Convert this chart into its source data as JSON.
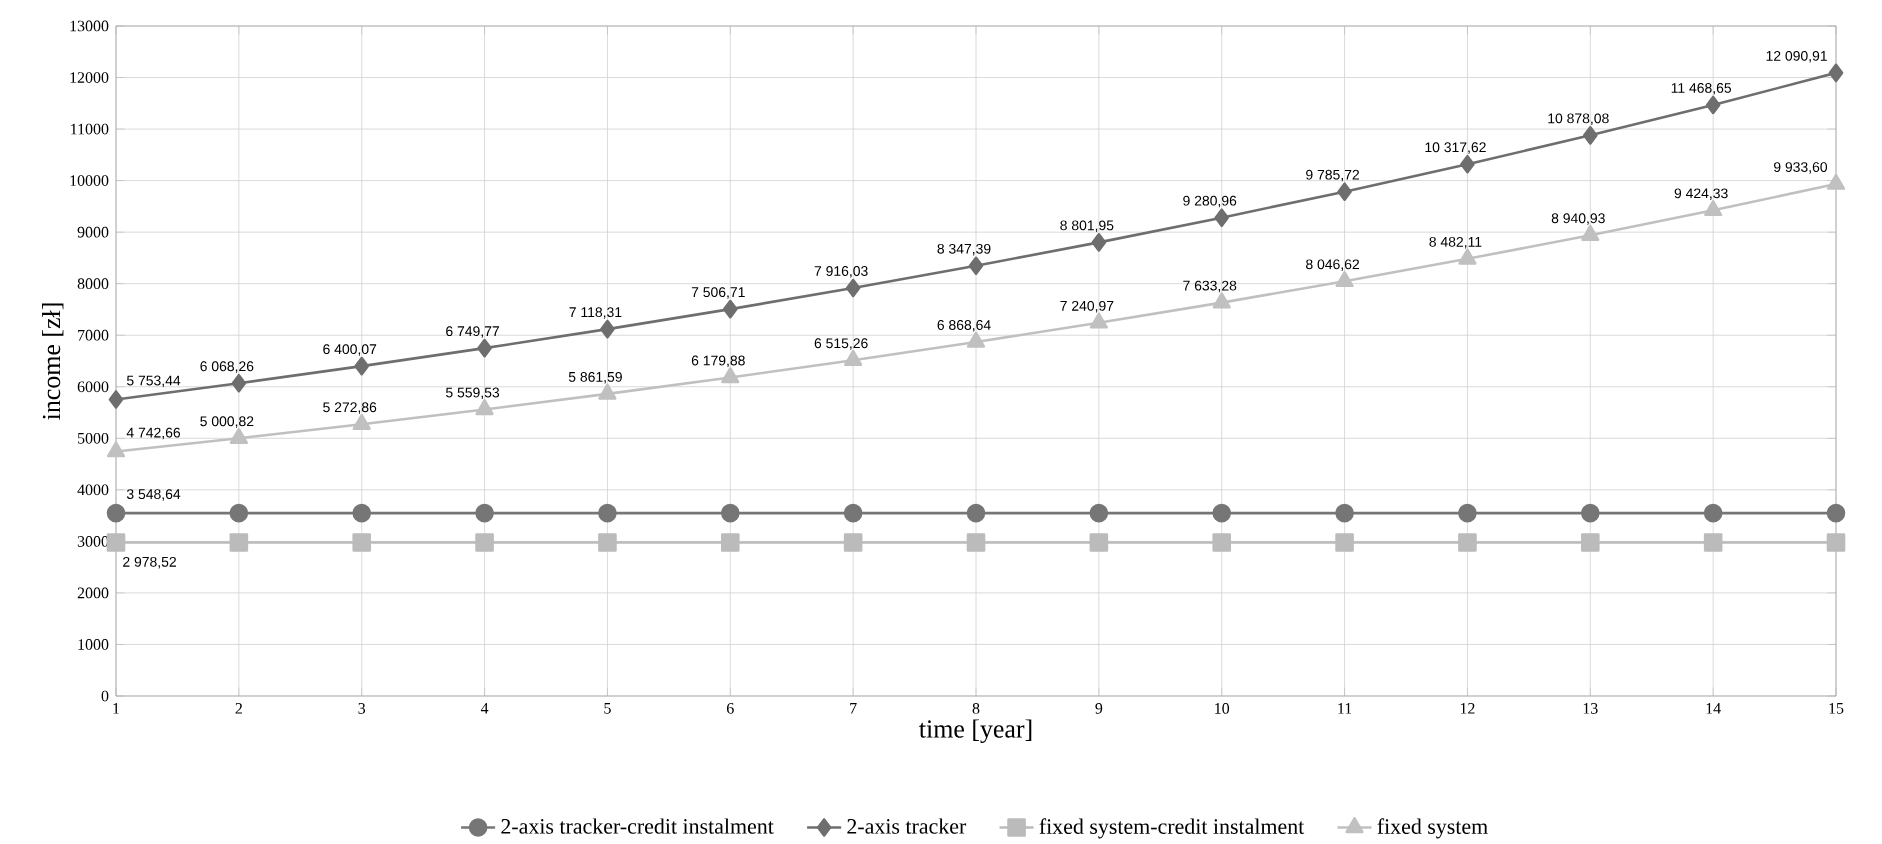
{
  "chart_data": {
    "type": "line",
    "xlabel": "time  [year]",
    "ylabel": "income [zł]",
    "x": [
      1,
      2,
      3,
      4,
      5,
      6,
      7,
      8,
      9,
      10,
      11,
      12,
      13,
      14,
      15
    ],
    "xlim": [
      1,
      15
    ],
    "xticks": [
      1,
      2,
      3,
      4,
      5,
      6,
      7,
      8,
      9,
      10,
      11,
      12,
      13,
      14,
      15
    ],
    "ylim": [
      0,
      13000
    ],
    "yticks": [
      0,
      1000,
      2000,
      3000,
      4000,
      5000,
      6000,
      7000,
      8000,
      9000,
      10000,
      11000,
      12000,
      13000
    ],
    "grid": true,
    "legend": "bottom",
    "line_style": "solid",
    "series": [
      {
        "name": "2-axis tracker-credit instalment",
        "color": "#767676",
        "marker": "circle",
        "values": [
          3548.64,
          3548.64,
          3548.64,
          3548.64,
          3548.64,
          3548.64,
          3548.64,
          3548.64,
          3548.64,
          3548.64,
          3548.64,
          3548.64,
          3548.64,
          3548.64,
          3548.64
        ],
        "value_labels": [
          "3 548,64",
          null,
          null,
          null,
          null,
          null,
          null,
          null,
          null,
          null,
          null,
          null,
          null,
          null,
          null
        ]
      },
      {
        "name": "2-axis tracker",
        "color": "#6e6e6e",
        "marker": "diamond",
        "values": [
          5753.44,
          6068.26,
          6400.07,
          6749.77,
          7118.31,
          7506.71,
          7916.03,
          8347.39,
          8801.95,
          9280.96,
          9785.72,
          10317.62,
          10878.08,
          11468.65,
          12090.91
        ],
        "value_labels": [
          "5 753,44",
          "6 068,26",
          "6 400,07",
          "6 749,77",
          "7 118,31",
          "7 506,71",
          "7 916,03",
          "8 347,39",
          "8 801,95",
          "9 280,96",
          "9 785,72",
          "10 317,62",
          "10 878,08",
          "11 468,65",
          "12 090,91"
        ]
      },
      {
        "name": "fixed system-credit instalment",
        "color": "#bbbbbb",
        "marker": "square",
        "values": [
          2978.52,
          2978.52,
          2978.52,
          2978.52,
          2978.52,
          2978.52,
          2978.52,
          2978.52,
          2978.52,
          2978.52,
          2978.52,
          2978.52,
          2978.52,
          2978.52,
          2978.52
        ],
        "value_labels": [
          "2 978,52",
          null,
          null,
          null,
          null,
          null,
          null,
          null,
          null,
          null,
          null,
          null,
          null,
          null,
          null
        ]
      },
      {
        "name": "fixed system",
        "color": "#c0c0c0",
        "marker": "triangle",
        "values": [
          4742.66,
          5000.82,
          5272.86,
          5559.53,
          5861.59,
          6179.88,
          6515.26,
          6868.64,
          7240.97,
          7633.28,
          8046.62,
          8482.11,
          8940.93,
          9424.33,
          9933.6
        ],
        "value_labels": [
          "4 742,66",
          "5 000,82",
          "5 272,86",
          "5 559,53",
          "5 861,59",
          "6 179,88",
          "6 515,26",
          "6 868,64",
          "7 240,97",
          "7 633,28",
          "8 046,62",
          "8 482,11",
          "8 940,93",
          "9 424,33",
          "9 933,60"
        ]
      }
    ]
  }
}
